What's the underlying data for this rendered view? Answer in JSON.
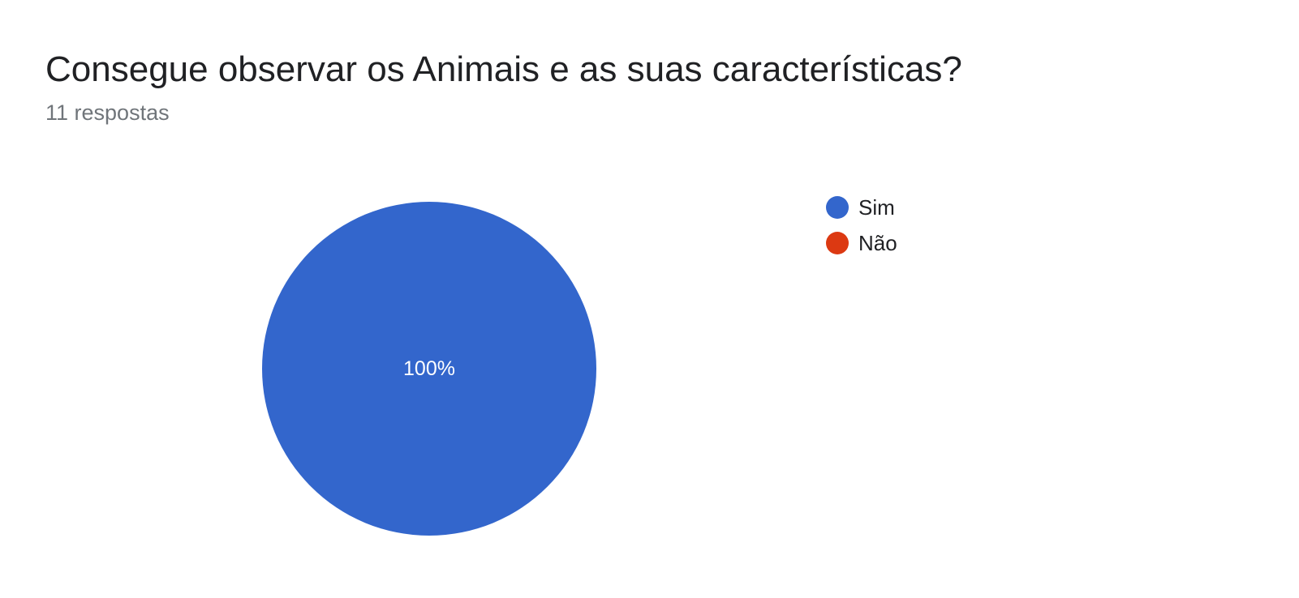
{
  "header": {
    "title": "Consegue observar os Animais e as suas características?",
    "response_count": "11 respostas"
  },
  "chart_data": {
    "type": "pie",
    "title": "Consegue observar os Animais e as suas características?",
    "categories": [
      "Sim",
      "Não"
    ],
    "values": [
      100,
      0
    ],
    "value_labels": [
      "100%",
      ""
    ],
    "colors": [
      "#3366cc",
      "#dc3912"
    ],
    "legend_position": "right",
    "label_color": "#ffffff"
  }
}
